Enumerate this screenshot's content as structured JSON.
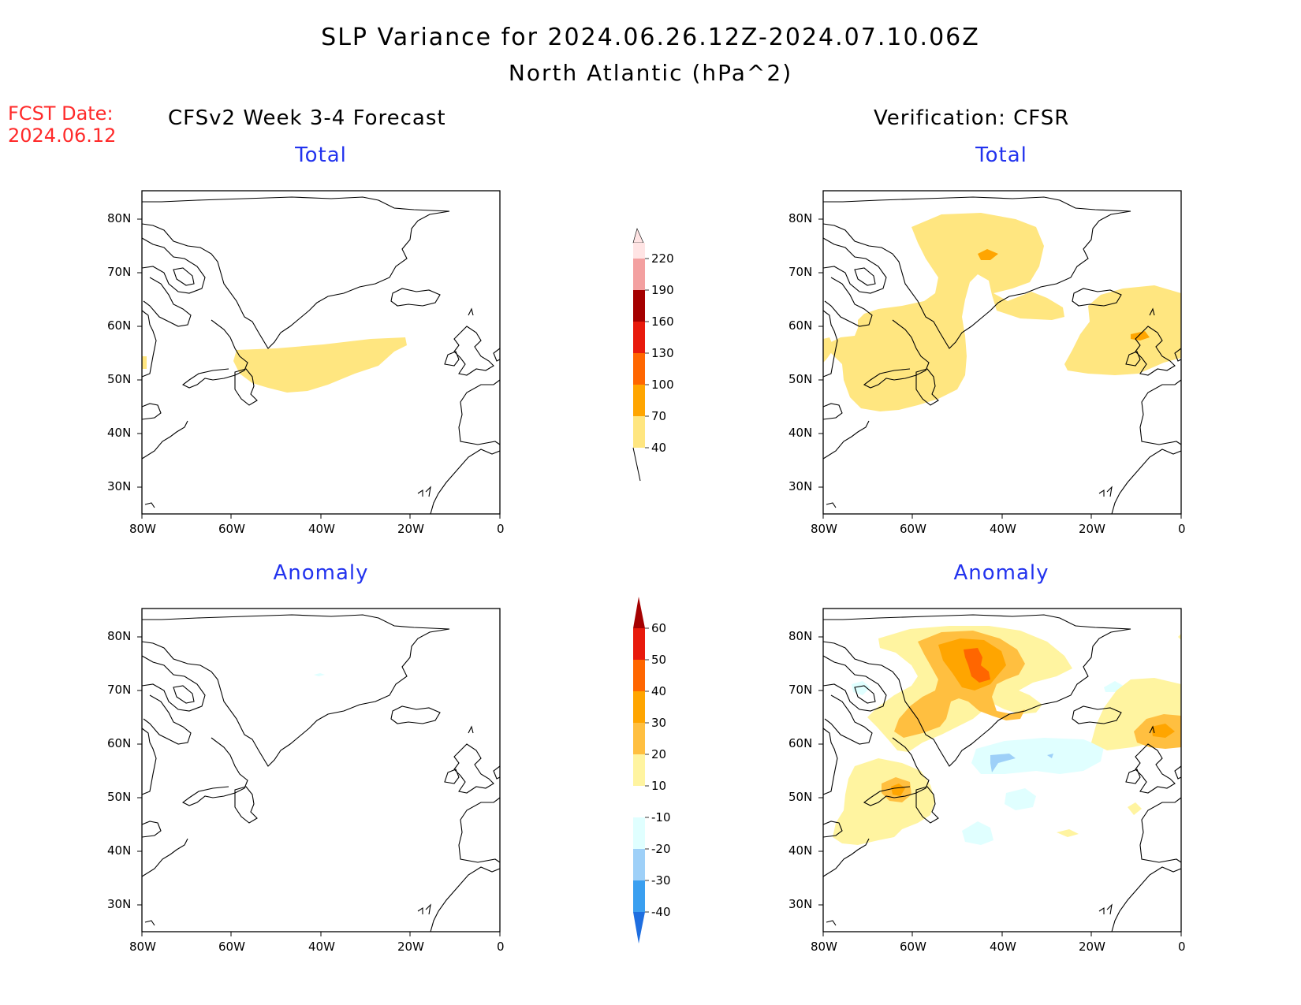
{
  "title": {
    "line1": "SLP Variance for 2024.06.26.12Z-2024.07.10.06Z",
    "line2": "North Atlantic (hPa^2)"
  },
  "fcst_date": {
    "label": "FCST Date:",
    "value": "2024.06.12"
  },
  "columns": {
    "left": "CFSv2 Week 3-4 Forecast",
    "right": "Verification: CFSR"
  },
  "panels": {
    "top_left": "Total",
    "top_right": "Total",
    "bottom_left": "Anomaly",
    "bottom_right": "Anomaly"
  },
  "axes": {
    "lat_labels": [
      "80N",
      "70N",
      "60N",
      "50N",
      "40N",
      "30N"
    ],
    "lon_labels": [
      "80W",
      "60W",
      "40W",
      "20W",
      "0"
    ]
  },
  "colorbars": {
    "total": {
      "levels": [
        "40",
        "70",
        "100",
        "130",
        "160",
        "190",
        "220"
      ],
      "colors": [
        "#ffe680",
        "#ffa500",
        "#ff6600",
        "#e81a0c",
        "#a50000",
        "#f3a0a0",
        "#ffe4e4"
      ]
    },
    "anomaly": {
      "levels": [
        "60",
        "50",
        "40",
        "30",
        "20",
        "10",
        "-10",
        "-20",
        "-30",
        "-40"
      ],
      "colors_top_to_bottom": [
        "#a50000",
        "#e81a0c",
        "#ff6600",
        "#ffa500",
        "#ffbf40",
        "#fff4a0",
        "#ffffff",
        "#e0ffff",
        "#9ed0f8",
        "#3a9ff0",
        "#1e6ee0"
      ]
    }
  },
  "legend_colors": {
    "title_red": "#ff2a2a",
    "panel_blue": "#2233ee"
  }
}
